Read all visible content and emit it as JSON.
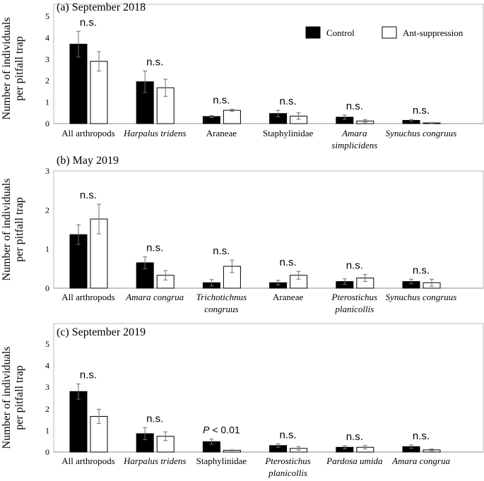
{
  "figure": {
    "ylabel_line1": "Number of individuals",
    "ylabel_line2": "per pitfall trap",
    "legend": [
      {
        "label": "Control",
        "color": "#000000"
      },
      {
        "label": "Ant-suppression",
        "color": "#ffffff"
      }
    ]
  },
  "chart_data": [
    {
      "type": "bar",
      "title": "(a) September 2018",
      "ylim": [
        0,
        5
      ],
      "yticks": [
        "0",
        "1",
        "2",
        "3",
        "4",
        "5"
      ],
      "categories": [
        {
          "line1": "All arthropods",
          "line2": "",
          "italic": false
        },
        {
          "line1": "Harpalus tridens",
          "line2": "",
          "italic": true
        },
        {
          "line1": "Araneae",
          "line2": "",
          "italic": false
        },
        {
          "line1": "Staphylinidae",
          "line2": "",
          "italic": false
        },
        {
          "line1": "Amara",
          "line2": "simplicidens",
          "italic": true
        },
        {
          "line1": "Synuchus congruus",
          "line2": "",
          "italic": true
        }
      ],
      "series": [
        {
          "name": "Control",
          "values": [
            3.7,
            1.95,
            0.33,
            0.47,
            0.3,
            0.15
          ],
          "errors": [
            0.6,
            0.5,
            0.05,
            0.15,
            0.1,
            0.04
          ]
        },
        {
          "name": "Ant-suppression",
          "values": [
            2.9,
            1.67,
            0.62,
            0.35,
            0.12,
            0.03
          ],
          "errors": [
            0.45,
            0.4,
            0.05,
            0.15,
            0.06,
            0.02
          ]
        }
      ],
      "annotations": [
        "n.s.",
        "n.s.",
        "n.s.",
        "n.s.",
        "n.s.",
        "n.s."
      ]
    },
    {
      "type": "bar",
      "title": "(b) May 2019",
      "ylim": [
        0,
        3
      ],
      "yticks": [
        "0",
        "1",
        "2",
        "3"
      ],
      "categories": [
        {
          "line1": "All arthropods",
          "line2": "",
          "italic": false
        },
        {
          "line1": "Amara congrua",
          "line2": "",
          "italic": true
        },
        {
          "line1": "Trichotichnus",
          "line2": "congruus",
          "italic": true
        },
        {
          "line1": "Araneae",
          "line2": "",
          "italic": false
        },
        {
          "line1": "Pterostichus",
          "line2": "planicollis",
          "italic": true
        },
        {
          "line1": "Synuchus congruus",
          "line2": "",
          "italic": true
        }
      ],
      "series": [
        {
          "name": "Control",
          "values": [
            1.37,
            0.65,
            0.14,
            0.14,
            0.17,
            0.17
          ],
          "errors": [
            0.25,
            0.15,
            0.08,
            0.06,
            0.07,
            0.06
          ]
        },
        {
          "name": "Ant-suppression",
          "values": [
            1.77,
            0.33,
            0.56,
            0.33,
            0.26,
            0.14
          ],
          "errors": [
            0.38,
            0.12,
            0.16,
            0.1,
            0.09,
            0.09
          ]
        }
      ],
      "annotations": [
        "n.s.",
        "n.s.",
        "n.s.",
        "n.s.",
        "n.s.",
        "n.s."
      ]
    },
    {
      "type": "bar",
      "title": "(c) September 2019",
      "ylim": [
        0,
        5
      ],
      "yticks": [
        "0",
        "1",
        "2",
        "3",
        "4",
        "5"
      ],
      "categories": [
        {
          "line1": "All arthropods",
          "line2": "",
          "italic": false
        },
        {
          "line1": "Harpalus tridens",
          "line2": "",
          "italic": true
        },
        {
          "line1": "Staphylinidae",
          "line2": "",
          "italic": false
        },
        {
          "line1": "Pterostichus",
          "line2": "planicollis",
          "italic": true
        },
        {
          "line1": "Pardosa umida",
          "line2": "",
          "italic": true
        },
        {
          "line1": "Amara congrua",
          "line2": "",
          "italic": true
        }
      ],
      "series": [
        {
          "name": "Control",
          "values": [
            2.8,
            0.85,
            0.48,
            0.3,
            0.22,
            0.25
          ],
          "errors": [
            0.35,
            0.28,
            0.12,
            0.08,
            0.07,
            0.08
          ]
        },
        {
          "name": "Ant-suppression",
          "values": [
            1.65,
            0.73,
            0.08,
            0.17,
            0.22,
            0.1
          ],
          "errors": [
            0.33,
            0.2,
            0.02,
            0.08,
            0.08,
            0.04
          ]
        }
      ],
      "annotations": [
        "n.s.",
        "n.s.",
        "P < 0.01",
        "n.s.",
        "n.s.",
        "n.s."
      ]
    }
  ]
}
